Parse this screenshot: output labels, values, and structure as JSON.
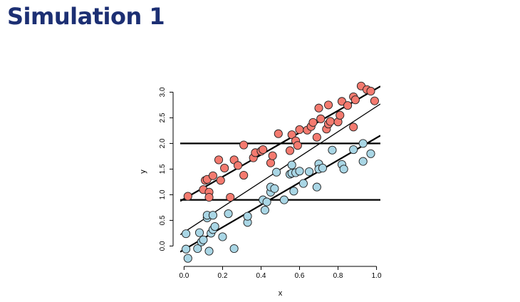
{
  "slide": {
    "title": "Simulation 1"
  },
  "chart_data": {
    "type": "scatter",
    "xlabel": "x",
    "ylabel": "y",
    "xlim": [
      -0.02,
      1.02
    ],
    "ylim": [
      -0.3,
      3.2
    ],
    "xticks": [
      "0.0",
      "0.2",
      "0.4",
      "0.6",
      "0.8",
      "1.0"
    ],
    "yticks": [
      "0.0",
      "0.5",
      "1.0",
      "1.5",
      "2.0",
      "2.5",
      "3.0"
    ],
    "grid": false,
    "series": [
      {
        "color": "#f47a6f",
        "points": [
          [
            0.02,
            0.97
          ],
          [
            0.1,
            1.1
          ],
          [
            0.11,
            1.28
          ],
          [
            0.12,
            1.3
          ],
          [
            0.13,
            1.05
          ],
          [
            0.13,
            0.95
          ],
          [
            0.15,
            1.37
          ],
          [
            0.18,
            1.68
          ],
          [
            0.19,
            1.28
          ],
          [
            0.21,
            1.52
          ],
          [
            0.24,
            0.95
          ],
          [
            0.26,
            1.68
          ],
          [
            0.28,
            1.57
          ],
          [
            0.31,
            1.38
          ],
          [
            0.31,
            1.97
          ],
          [
            0.36,
            1.72
          ],
          [
            0.37,
            1.82
          ],
          [
            0.4,
            1.85
          ],
          [
            0.41,
            1.88
          ],
          [
            0.45,
            1.62
          ],
          [
            0.46,
            1.76
          ],
          [
            0.49,
            2.19
          ],
          [
            0.55,
            1.86
          ],
          [
            0.56,
            2.17
          ],
          [
            0.58,
            2.05
          ],
          [
            0.59,
            1.96
          ],
          [
            0.6,
            2.27
          ],
          [
            0.64,
            2.26
          ],
          [
            0.66,
            2.33
          ],
          [
            0.67,
            2.41
          ],
          [
            0.69,
            2.12
          ],
          [
            0.7,
            2.69
          ],
          [
            0.71,
            2.48
          ],
          [
            0.74,
            2.28
          ],
          [
            0.75,
            2.38
          ],
          [
            0.75,
            2.75
          ],
          [
            0.76,
            2.43
          ],
          [
            0.8,
            2.42
          ],
          [
            0.81,
            2.55
          ],
          [
            0.82,
            2.82
          ],
          [
            0.85,
            2.74
          ],
          [
            0.88,
            2.32
          ],
          [
            0.88,
            2.91
          ],
          [
            0.89,
            2.85
          ],
          [
            0.92,
            3.12
          ],
          [
            0.95,
            3.05
          ],
          [
            0.97,
            3.02
          ],
          [
            0.99,
            2.83
          ]
        ]
      },
      {
        "color": "#a9d6e5",
        "points": [
          [
            0.01,
            0.24
          ],
          [
            0.01,
            -0.06
          ],
          [
            0.02,
            -0.24
          ],
          [
            0.07,
            -0.05
          ],
          [
            0.08,
            0.26
          ],
          [
            0.09,
            0.08
          ],
          [
            0.1,
            0.12
          ],
          [
            0.12,
            0.55
          ],
          [
            0.12,
            0.6
          ],
          [
            0.13,
            -0.1
          ],
          [
            0.14,
            0.25
          ],
          [
            0.15,
            0.32
          ],
          [
            0.15,
            0.6
          ],
          [
            0.16,
            0.38
          ],
          [
            0.2,
            0.18
          ],
          [
            0.23,
            0.63
          ],
          [
            0.26,
            -0.05
          ],
          [
            0.33,
            0.46
          ],
          [
            0.33,
            0.58
          ],
          [
            0.41,
            0.9
          ],
          [
            0.42,
            0.7
          ],
          [
            0.43,
            0.86
          ],
          [
            0.45,
            1.05
          ],
          [
            0.45,
            1.15
          ],
          [
            0.47,
            1.12
          ],
          [
            0.48,
            1.44
          ],
          [
            0.52,
            0.9
          ],
          [
            0.55,
            1.4
          ],
          [
            0.56,
            1.42
          ],
          [
            0.56,
            1.58
          ],
          [
            0.57,
            1.07
          ],
          [
            0.58,
            1.43
          ],
          [
            0.6,
            1.46
          ],
          [
            0.62,
            1.22
          ],
          [
            0.65,
            1.45
          ],
          [
            0.69,
            1.15
          ],
          [
            0.7,
            1.6
          ],
          [
            0.7,
            1.5
          ],
          [
            0.72,
            1.52
          ],
          [
            0.77,
            1.87
          ],
          [
            0.82,
            1.59
          ],
          [
            0.83,
            1.5
          ],
          [
            0.88,
            1.88
          ],
          [
            0.93,
            2.0
          ],
          [
            0.93,
            1.65
          ],
          [
            0.97,
            1.8
          ]
        ]
      }
    ],
    "lines": [
      {
        "kind": "hline",
        "y": 2.0,
        "width": 2.2
      },
      {
        "kind": "hline",
        "y": 0.9,
        "width": 2.2
      },
      {
        "kind": "abline",
        "intercept": 0.92,
        "slope": 2.15,
        "width": 2.2
      },
      {
        "kind": "abline",
        "intercept": 0.27,
        "slope": 2.45,
        "width": 1.3
      },
      {
        "kind": "abline",
        "intercept": -0.07,
        "slope": 2.18,
        "width": 2.2
      }
    ]
  }
}
